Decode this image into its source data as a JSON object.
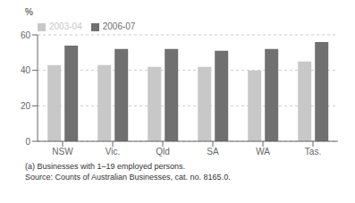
{
  "chart_data": {
    "type": "bar",
    "categories": [
      "NSW",
      "Vic.",
      "Qld",
      "SA",
      "WA",
      "Tas."
    ],
    "series": [
      {
        "name": "2003-04",
        "color": "#c8c8c8",
        "values": [
          43,
          43,
          42,
          42,
          40,
          45
        ]
      },
      {
        "name": "2006-07",
        "color": "#707070",
        "values": [
          54,
          52,
          52,
          51,
          52,
          56
        ]
      }
    ],
    "ylabel": "%",
    "ylim": [
      0,
      60
    ],
    "yticks": [
      0,
      20,
      40,
      60
    ],
    "grid": true,
    "legend": "upper left",
    "annotations": [
      "(a) Businesses with 1–19 employed persons.",
      "Source: Counts of Australian Businesses, cat.  no.  8165.0."
    ]
  }
}
